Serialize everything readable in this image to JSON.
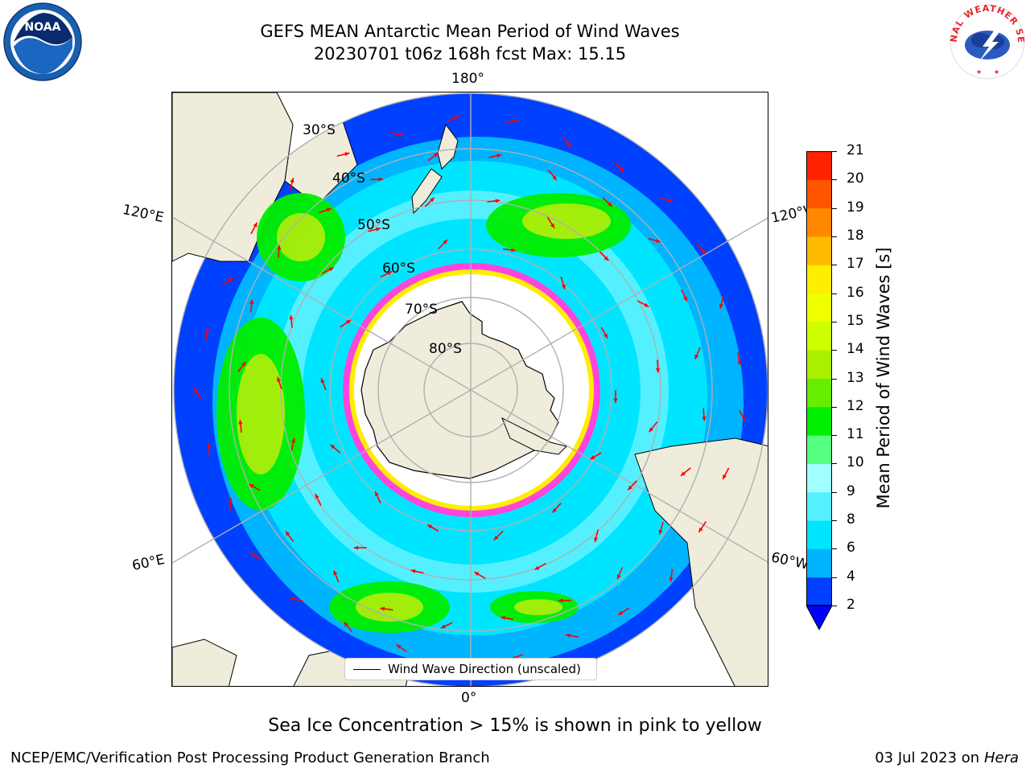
{
  "header": {
    "title_line1": "GEFS MEAN Antarctic Mean Period of Wind Waves",
    "title_line2": "20230701 t06z 168h fcst   Max: 15.15"
  },
  "map": {
    "meridian_labels": [
      "180°",
      "120°E",
      "120°W",
      "60°E",
      "60°W",
      "0°"
    ],
    "parallel_labels": [
      "30°S",
      "40°S",
      "50°S",
      "60°S",
      "70°S",
      "80°S"
    ],
    "legend_label": "Wind Wave Direction (unscaled)"
  },
  "colorbar": {
    "label": "Mean Period of Wind Waves [s]",
    "ticks": [
      "2",
      "4",
      "6",
      "8",
      "9",
      "10",
      "11",
      "12",
      "13",
      "14",
      "15",
      "16",
      "17",
      "18",
      "19",
      "20",
      "21"
    ],
    "colors": [
      "#0040ff",
      "#00b4ff",
      "#00e5ff",
      "#55f0ff",
      "#a0ffff",
      "#55ff80",
      "#00ee00",
      "#66ee00",
      "#aaee00",
      "#ccff00",
      "#eeff00",
      "#ffee00",
      "#ffbb00",
      "#ff8800",
      "#ff5500",
      "#ff2200",
      "#ff0000"
    ],
    "extend_color": "#0000ff"
  },
  "subtitle": "Sea Ice Concentration > 15% is shown in pink to yellow",
  "footer": {
    "left": "NCEP/EMC/Verification Post Processing Product Generation Branch",
    "date": "03 Jul 2023 on ",
    "host": "Hera"
  },
  "colors": {
    "land": "#efecdc",
    "ice_edge_pink": "#ff44dd",
    "arrow": "#ff0000",
    "grid": "#b0b0b0"
  },
  "logos": {
    "left": "noaa-logo",
    "right": "national-weather-service-logo",
    "right_text": "NATIONAL WEATHER SERVICE"
  }
}
